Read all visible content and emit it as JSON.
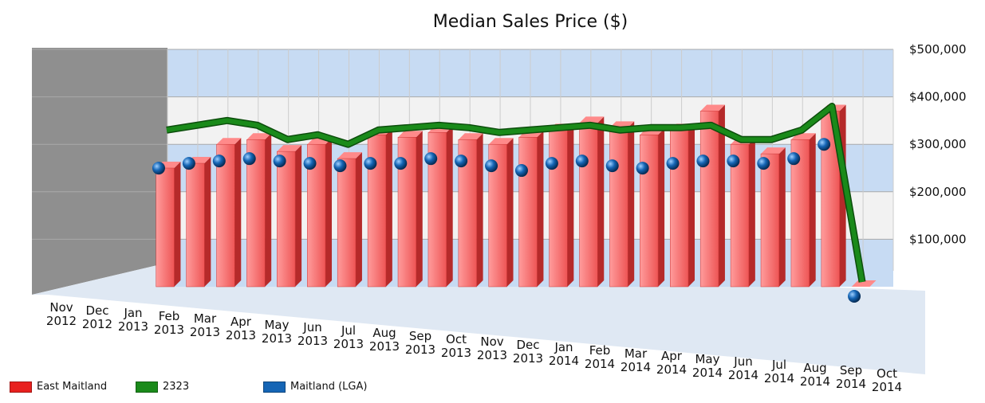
{
  "chart_data": {
    "type": "bar",
    "title": "Median Sales Price ($)",
    "categories": [
      "Nov 2012",
      "Dec 2012",
      "Jan 2013",
      "Feb 2013",
      "Mar 2013",
      "Apr 2013",
      "May 2013",
      "Jun 2013",
      "Jul 2013",
      "Aug 2013",
      "Sep 2013",
      "Oct 2013",
      "Nov 2013",
      "Dec 2013",
      "Jan 2014",
      "Feb 2014",
      "Mar 2014",
      "Apr 2014",
      "May 2014",
      "Jun 2014",
      "Jul 2014",
      "Aug 2014",
      "Sep 2014",
      "Oct 2014"
    ],
    "series": [
      {
        "name": "East Maitland",
        "type": "bar",
        "color": "#e8201e",
        "values": [
          250000,
          260000,
          300000,
          310000,
          285000,
          300000,
          270000,
          320000,
          315000,
          325000,
          310000,
          300000,
          315000,
          330000,
          345000,
          335000,
          320000,
          330000,
          370000,
          300000,
          280000,
          310000,
          370000,
          0
        ]
      },
      {
        "name": "2323",
        "type": "line",
        "color": "#1a8a1a",
        "values": [
          320000,
          330000,
          340000,
          330000,
          300000,
          310000,
          290000,
          320000,
          325000,
          330000,
          325000,
          315000,
          320000,
          325000,
          330000,
          320000,
          325000,
          325000,
          330000,
          300000,
          300000,
          320000,
          370000,
          0
        ]
      },
      {
        "name": "Maitland (LGA)",
        "type": "scatter",
        "color": "#1565b5",
        "values": [
          270000,
          280000,
          285000,
          290000,
          285000,
          280000,
          275000,
          280000,
          280000,
          290000,
          285000,
          275000,
          265000,
          280000,
          285000,
          275000,
          270000,
          280000,
          285000,
          285000,
          280000,
          290000,
          320000,
          0
        ]
      }
    ],
    "ylim": [
      0,
      500000
    ],
    "yticks": [
      {
        "value": 100000,
        "label": "$100,000"
      },
      {
        "value": 200000,
        "label": "$200,000"
      },
      {
        "value": 300000,
        "label": "$300,000"
      },
      {
        "value": 400000,
        "label": "$400,000"
      },
      {
        "value": 500000,
        "label": "$500,000"
      }
    ],
    "grid": true
  }
}
